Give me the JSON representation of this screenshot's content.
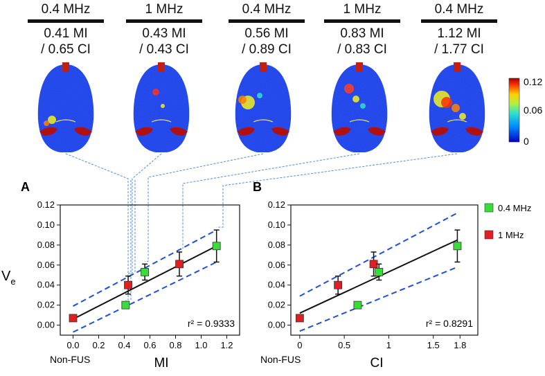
{
  "colors": {
    "green": "#38dd38",
    "red": "#e02020",
    "fit_line": "#111111",
    "ci_band": "#1f4fd8",
    "connector": "#4a90d9"
  },
  "brain_panels": [
    {
      "freq": "0.4 MHz",
      "mi": "0.41 MI",
      "ci": "/ 0.65 CI"
    },
    {
      "freq": "1 MHz",
      "mi": "0.43 MI",
      "ci": "/ 0.43 CI"
    },
    {
      "freq": "0.4 MHz",
      "mi": "0.56 MI",
      "ci": "/ 0.89 CI"
    },
    {
      "freq": "1 MHz",
      "mi": "0.83 MI",
      "ci": "/ 0.83 CI"
    },
    {
      "freq": "0.4 MHz",
      "mi": "1.12 MI",
      "ci": "/ 1.77 CI"
    }
  ],
  "colorbar": {
    "max_label": "0.12",
    "mid_label": "0.06",
    "min_label": "0"
  },
  "legend": {
    "green_label": "0.4 MHz",
    "red_label": "1 MHz"
  },
  "chart_data": [
    {
      "type": "scatter",
      "panel_label": "A",
      "xlabel": "MI",
      "ylabel": "Ve",
      "ylabel_main": "V",
      "ylabel_sub": "e",
      "xlim": [
        -0.1,
        1.3
      ],
      "ylim": [
        -0.01,
        0.12
      ],
      "xticks": [
        0.0,
        0.2,
        0.4,
        0.6,
        0.8,
        1.0,
        1.2
      ],
      "xtick_labels": [
        "0.0",
        "0.2",
        "0.4",
        "0.6",
        "0.8",
        "1.0",
        "1.2"
      ],
      "yticks": [
        0.0,
        0.02,
        0.04,
        0.06,
        0.08,
        0.1,
        0.12
      ],
      "ytick_labels": [
        "0.00",
        "0.02",
        "0.04",
        "0.06",
        "0.08",
        "0.10",
        "0.12"
      ],
      "non_fus_label": "Non-FUS",
      "r2_label": "r² = 0.9333",
      "points": [
        {
          "series": "1 MHz",
          "x": 0.0,
          "y": 0.007,
          "err": 0
        },
        {
          "series": "0.4 MHz",
          "x": 0.41,
          "y": 0.02,
          "err": 0.002
        },
        {
          "series": "1 MHz",
          "x": 0.43,
          "y": 0.04,
          "err": 0.009
        },
        {
          "series": "0.4 MHz",
          "x": 0.56,
          "y": 0.053,
          "err": 0.008
        },
        {
          "series": "1 MHz",
          "x": 0.83,
          "y": 0.061,
          "err": 0.012
        },
        {
          "series": "0.4 MHz",
          "x": 1.12,
          "y": 0.079,
          "err": 0.016
        }
      ],
      "fit": {
        "x": [
          0.0,
          1.12
        ],
        "y": [
          0.006,
          0.079
        ]
      },
      "ci_upper": {
        "x": [
          0.0,
          1.12
        ],
        "y": [
          0.019,
          0.095
        ]
      },
      "ci_lower": {
        "x": [
          0.0,
          1.12
        ],
        "y": [
          -0.007,
          0.063
        ]
      }
    },
    {
      "type": "scatter",
      "panel_label": "B",
      "xlabel": "CI",
      "xlim": [
        -0.1,
        2.0
      ],
      "ylim": [
        -0.01,
        0.12
      ],
      "xticks": [
        0.0,
        0.5,
        1.0,
        1.5,
        1.8
      ],
      "xtick_labels": [
        "0",
        "0.5",
        "1",
        "1.5",
        "1.8"
      ],
      "yticks": [
        0.0,
        0.02,
        0.04,
        0.06,
        0.08,
        0.1,
        0.12
      ],
      "ytick_labels": [
        "0.00",
        "0.02",
        "0.04",
        "0.06",
        "0.08",
        "0.10",
        "0.12"
      ],
      "non_fus_label": "Non-FUS",
      "r2_label": "r² = 0.8291",
      "points": [
        {
          "series": "1 MHz",
          "x": 0.0,
          "y": 0.007,
          "err": 0
        },
        {
          "series": "1 MHz",
          "x": 0.43,
          "y": 0.04,
          "err": 0.009
        },
        {
          "series": "0.4 MHz",
          "x": 0.65,
          "y": 0.02,
          "err": 0.002
        },
        {
          "series": "1 MHz",
          "x": 0.83,
          "y": 0.061,
          "err": 0.012
        },
        {
          "series": "0.4 MHz",
          "x": 0.89,
          "y": 0.053,
          "err": 0.008
        },
        {
          "series": "0.4 MHz",
          "x": 1.77,
          "y": 0.079,
          "err": 0.016
        }
      ],
      "fit": {
        "x": [
          0.0,
          1.77
        ],
        "y": [
          0.012,
          0.085
        ]
      },
      "ci_upper": {
        "x": [
          0.0,
          1.77
        ],
        "y": [
          0.029,
          0.112
        ]
      },
      "ci_lower": {
        "x": [
          0.0,
          1.77
        ],
        "y": [
          -0.006,
          0.058
        ]
      }
    }
  ]
}
